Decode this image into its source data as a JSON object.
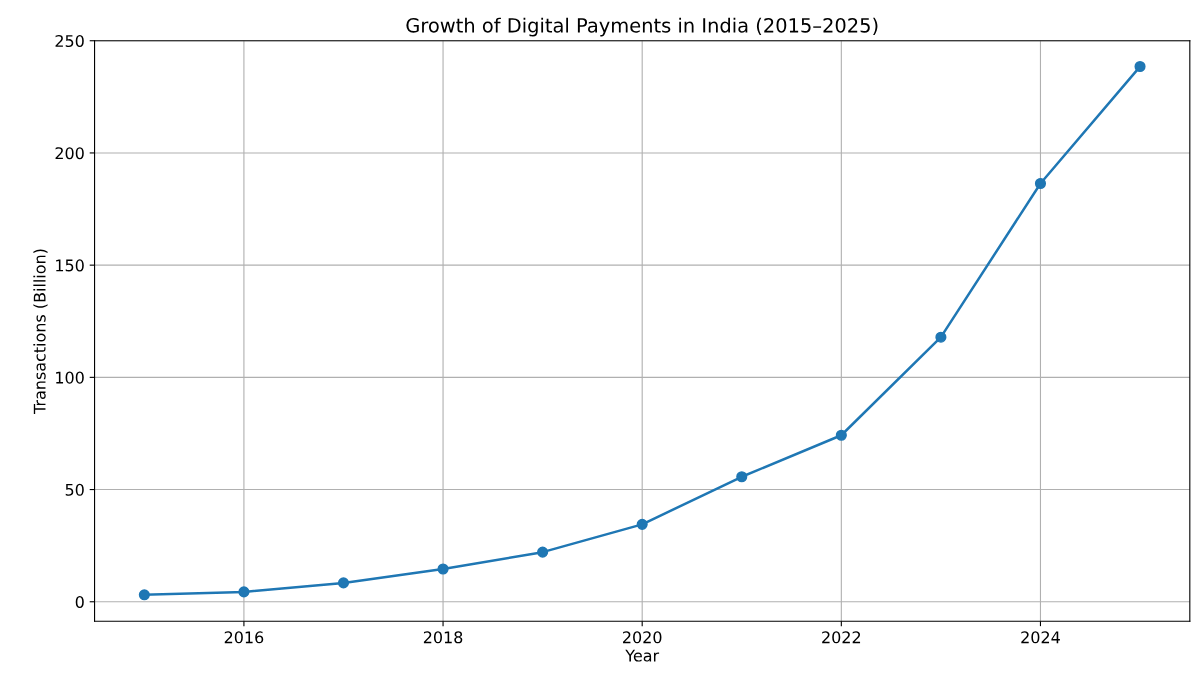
{
  "chart_data": {
    "type": "line",
    "title": "Growth of Digital Payments in India (2015–2025)",
    "xlabel": "Year",
    "ylabel": "Transactions (Billion)",
    "x": [
      2015,
      2016,
      2017,
      2018,
      2019,
      2020,
      2021,
      2022,
      2023,
      2024,
      2025
    ],
    "series": [
      {
        "color": "#1f77b4",
        "values": [
          3.1,
          4.4,
          8.4,
          14.6,
          22.1,
          34.5,
          55.7,
          74.2,
          117.9,
          186.4,
          238.5
        ]
      }
    ],
    "xlim": [
      2014.5,
      2025.5
    ],
    "xticks": [
      2016,
      2018,
      2020,
      2022,
      2024
    ],
    "ylim": [
      -8.7,
      250
    ],
    "yticks": [
      0,
      50,
      100,
      150,
      200,
      250
    ],
    "grid": true,
    "marker": "circle",
    "line_style": "solid"
  }
}
